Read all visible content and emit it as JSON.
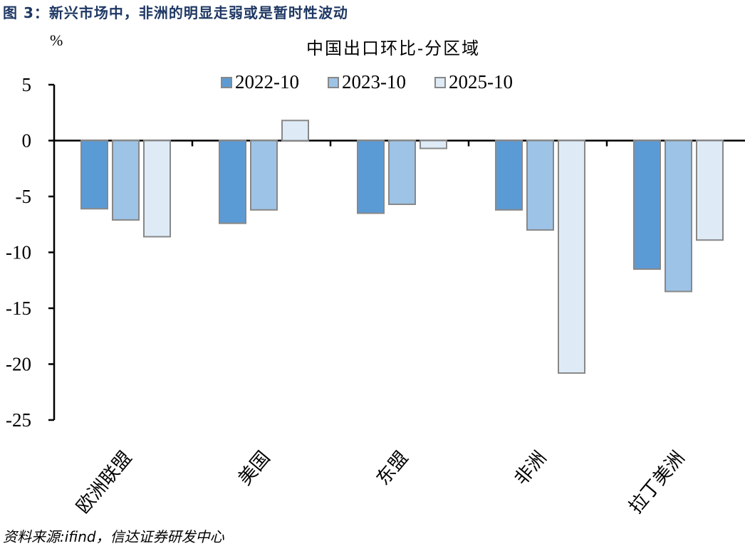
{
  "figure_title": "图 3：新兴市场中，非洲的明显走弱或是暂时性波动",
  "unit_label": "%",
  "source": "资料来源:ifind，信达证券研发中心",
  "colors": {
    "s2022": "#5b9bd5",
    "s2023": "#9dc3e6",
    "s2025": "#deebf7",
    "border": "#888888",
    "axis": "#000000",
    "title": "#1f3864"
  },
  "chart_data": {
    "type": "bar",
    "title": "中国出口环比-分区域",
    "xlabel": "",
    "ylabel": "%",
    "ylim": [
      -25,
      5
    ],
    "yticks": [
      5,
      0,
      -5,
      -10,
      -15,
      -20,
      -25
    ],
    "grid": false,
    "legend_position": "top",
    "categories": [
      "欧洲联盟",
      "美国",
      "东盟",
      "非洲",
      "拉丁美洲"
    ],
    "series": [
      {
        "name": "2022-10",
        "values": [
          -6.1,
          -7.4,
          -6.5,
          -6.2,
          -11.5
        ]
      },
      {
        "name": "2023-10",
        "values": [
          -7.1,
          -6.2,
          -5.7,
          -8.0,
          -13.5
        ]
      },
      {
        "name": "2025-10",
        "values": [
          -8.6,
          1.8,
          -0.7,
          -20.8,
          -8.9
        ]
      }
    ]
  }
}
